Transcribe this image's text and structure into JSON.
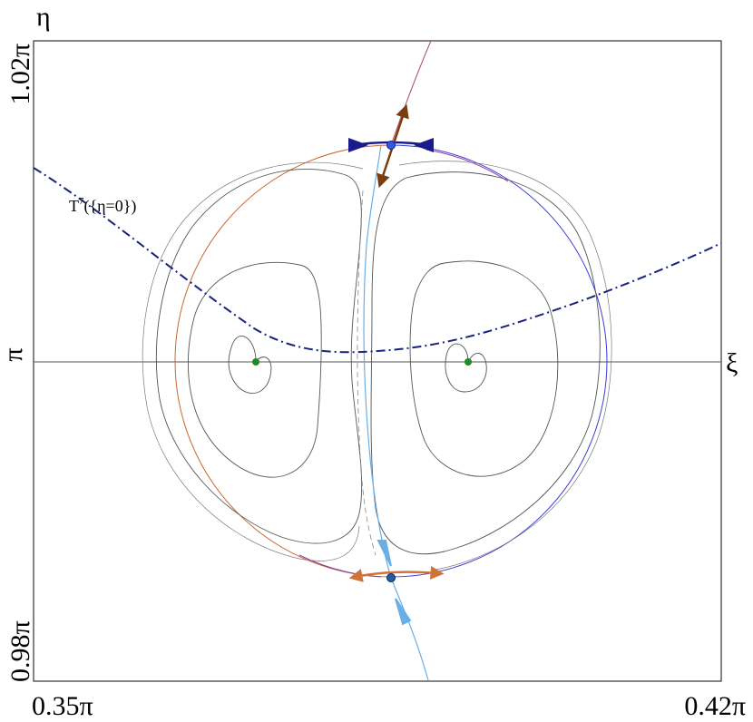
{
  "labels": {
    "eta": "η",
    "xi": "ξ",
    "y_top": "1.02π",
    "y_mid": "π",
    "y_bottom": "0.98π",
    "x_left": "0.35π",
    "x_right": "0.42π",
    "curve_label_base": "T",
    "curve_label_sup": "7",
    "curve_label_rest": "({η=0})"
  },
  "colors": {
    "frame": "#333333",
    "axis": "#555555",
    "contour": "#555555",
    "dashed_curve": "#1a237e",
    "upper_separatrix": "#1a1a8c",
    "upper_unstable": "#7a3d10",
    "lower_stable": "#6aaee6",
    "lower_unstable": "#d0733a",
    "arc_left": "#c8662e",
    "arc_right": "#3b3bd8",
    "fixed_point": "#1e8c1e",
    "saddle_upper": "#2a5de0",
    "saddle_lower": "#1f5fa8"
  }
}
